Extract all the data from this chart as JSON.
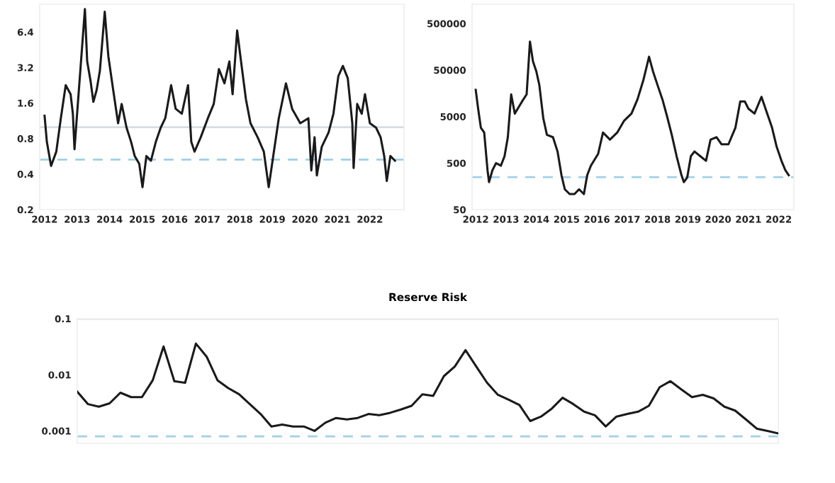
{
  "chart_data": [
    {
      "type": "line",
      "log": "y",
      "grid": false,
      "legend": false,
      "x": [
        2012.0,
        2012.07,
        2012.2,
        2012.36,
        2012.5,
        2012.65,
        2012.8,
        2012.87,
        2012.92,
        2013.0,
        2013.12,
        2013.24,
        2013.31,
        2013.41,
        2013.5,
        2013.6,
        2013.7,
        2013.85,
        2013.96,
        2014.11,
        2014.26,
        2014.37,
        2014.52,
        2014.66,
        2014.77,
        2014.91,
        2015.01,
        2015.13,
        2015.27,
        2015.42,
        2015.57,
        2015.71,
        2015.89,
        2016.03,
        2016.22,
        2016.41,
        2016.51,
        2016.61,
        2016.8,
        2017.02,
        2017.2,
        2017.36,
        2017.53,
        2017.68,
        2017.78,
        2017.92,
        2018.04,
        2018.19,
        2018.33,
        2018.55,
        2018.74,
        2018.89,
        2019.03,
        2019.2,
        2019.42,
        2019.61,
        2019.86,
        2020.11,
        2020.2,
        2020.3,
        2020.37,
        2020.52,
        2020.73,
        2020.88,
        2021.03,
        2021.17,
        2021.32,
        2021.46,
        2021.5,
        2021.61,
        2021.75,
        2021.85,
        2022.0,
        2022.19,
        2022.33,
        2022.44,
        2022.52,
        2022.63,
        2022.77
      ],
      "series": [
        {
          "color": "#1a1a1a",
          "values": [
            1.25,
            0.75,
            0.47,
            0.62,
            1.19,
            2.27,
            1.9,
            1.3,
            0.65,
            1.3,
            3.6,
            10,
            3.6,
            2.5,
            1.64,
            2.06,
            3.0,
            9.5,
            4.0,
            2.06,
            1.08,
            1.57,
            0.99,
            0.75,
            0.57,
            0.49,
            0.31,
            0.57,
            0.52,
            0.75,
            0.99,
            1.19,
            2.27,
            1.43,
            1.3,
            2.27,
            0.75,
            0.62,
            0.82,
            1.19,
            1.57,
            3.1,
            2.35,
            3.6,
            1.9,
            6.6,
            3.6,
            1.72,
            1.08,
            0.82,
            0.62,
            0.31,
            0.57,
            1.19,
            2.35,
            1.43,
            1.08,
            1.19,
            0.43,
            0.82,
            0.39,
            0.68,
            0.9,
            1.3,
            2.7,
            3.3,
            2.6,
            1.08,
            0.45,
            1.57,
            1.3,
            1.9,
            1.08,
            0.99,
            0.82,
            0.57,
            0.35,
            0.57,
            0.52
          ]
        }
      ],
      "xlim": [
        2011.85,
        2023.05
      ],
      "xticks": [
        2012,
        2013,
        2014,
        2015,
        2016,
        2017,
        2018,
        2019,
        2020,
        2021,
        2022
      ],
      "ylim": [
        0.2,
        11
      ],
      "yticks": [
        0.2,
        0.4,
        0.8,
        1.6,
        3.2,
        6.4
      ],
      "ref_lines": [
        {
          "axis": "y",
          "value": 1.0,
          "color": "#d9dde0",
          "line_style": "solid"
        },
        {
          "axis": "y",
          "value": 0.53,
          "color": "#9fd0e8",
          "line_style": "dashed"
        }
      ]
    },
    {
      "type": "line",
      "log": "y",
      "grid": false,
      "legend": false,
      "x": [
        2012.0,
        2012.08,
        2012.17,
        2012.28,
        2012.39,
        2012.44,
        2012.55,
        2012.67,
        2012.83,
        2012.95,
        2013.06,
        2013.17,
        2013.29,
        2013.53,
        2013.68,
        2013.79,
        2013.89,
        2014.0,
        2014.1,
        2014.23,
        2014.35,
        2014.55,
        2014.7,
        2014.83,
        2014.94,
        2015.1,
        2015.26,
        2015.41,
        2015.57,
        2015.68,
        2015.8,
        2016.04,
        2016.2,
        2016.43,
        2016.67,
        2016.9,
        2017.14,
        2017.34,
        2017.53,
        2017.72,
        2017.85,
        2018.0,
        2018.16,
        2018.31,
        2018.47,
        2018.63,
        2018.79,
        2018.87,
        2018.98,
        2019.1,
        2019.22,
        2019.41,
        2019.6,
        2019.75,
        2019.95,
        2020.11,
        2020.34,
        2020.57,
        2020.73,
        2020.88,
        2021.0,
        2021.2,
        2021.43,
        2021.62,
        2021.78,
        2021.93,
        2022.09,
        2022.22,
        2022.33
      ],
      "series": [
        {
          "color": "#1a1a1a",
          "values": [
            18800,
            7400,
            2880,
            2270,
            350,
            195,
            350,
            500,
            440,
            700,
            1800,
            15000,
            5800,
            10600,
            15000,
            205000,
            76700,
            47000,
            23800,
            4600,
            2030,
            1800,
            890,
            276,
            137,
            108,
            108,
            137,
            108,
            276,
            440,
            790,
            2270,
            1600,
            2270,
            4100,
            5800,
            11800,
            30000,
            97000,
            47000,
            23800,
            11800,
            5200,
            2030,
            705,
            276,
            195,
            245,
            705,
            890,
            705,
            560,
            1600,
            1800,
            1270,
            1270,
            2880,
            10600,
            10600,
            7400,
            5800,
            13300,
            5800,
            2880,
            1130,
            560,
            350,
            276
          ]
        }
      ],
      "xlim": [
        2011.88,
        2022.5
      ],
      "xticks": [
        2012,
        2013,
        2014,
        2015,
        2016,
        2017,
        2018,
        2019,
        2020,
        2021,
        2022
      ],
      "ylim": [
        50,
        1300000
      ],
      "yticks": [
        50,
        500,
        5000,
        50000,
        500000
      ],
      "ref_lines": [
        {
          "axis": "y",
          "value": 250,
          "color": "#9fd0e8",
          "line_style": "dashed"
        }
      ]
    },
    {
      "type": "line",
      "log": "y",
      "grid": false,
      "legend": false,
      "title": "Reserve Risk",
      "tick_labels": "y",
      "categories": [
        null,
        null,
        null,
        null,
        null,
        null,
        null,
        null,
        null,
        null,
        null,
        null,
        null,
        null,
        null,
        null,
        null,
        null,
        null,
        null,
        null,
        null,
        null,
        null,
        null,
        null,
        null,
        null,
        null,
        null,
        null,
        null,
        null,
        null,
        null,
        null,
        null,
        null,
        null,
        null,
        null,
        null,
        null,
        null,
        null,
        null,
        null,
        null,
        null,
        null,
        null,
        null,
        null,
        null,
        null,
        null,
        null,
        null,
        null,
        null,
        null,
        null,
        null,
        null,
        null,
        null
      ],
      "series": [
        {
          "color": "#1a1a1a",
          "values": [
            0.005,
            0.003,
            0.0027,
            0.0031,
            0.0048,
            0.004,
            0.004,
            0.008,
            0.032,
            0.0077,
            0.0072,
            0.036,
            0.021,
            0.008,
            0.0058,
            0.0045,
            0.003,
            0.002,
            0.0012,
            0.0013,
            0.0012,
            0.0012,
            0.001,
            0.0014,
            0.0017,
            0.0016,
            0.0017,
            0.002,
            0.0019,
            0.0021,
            0.0024,
            0.0028,
            0.0045,
            0.0042,
            0.0095,
            0.014,
            0.0275,
            0.014,
            0.0072,
            0.0044,
            0.0036,
            0.0029,
            0.0015,
            0.0018,
            0.0025,
            0.0039,
            0.003,
            0.0022,
            0.0019,
            0.0012,
            0.0018,
            0.002,
            0.0022,
            0.0028,
            0.006,
            0.0077,
            0.0055,
            0.004,
            0.0044,
            0.0038,
            0.0027,
            0.0023,
            0.0016,
            0.0011,
            0.001,
            0.0009
          ]
        }
      ],
      "ylim": [
        0.0006,
        0.1
      ],
      "yticks": [
        0.001,
        0.01,
        0.1
      ],
      "ref_lines": [
        {
          "axis": "y",
          "value": 0.1,
          "color": "#d9dde0",
          "line_style": "solid"
        },
        {
          "axis": "y",
          "value": 0.0008,
          "color": "#9fd0e8",
          "line_style": "dashed"
        }
      ]
    }
  ]
}
